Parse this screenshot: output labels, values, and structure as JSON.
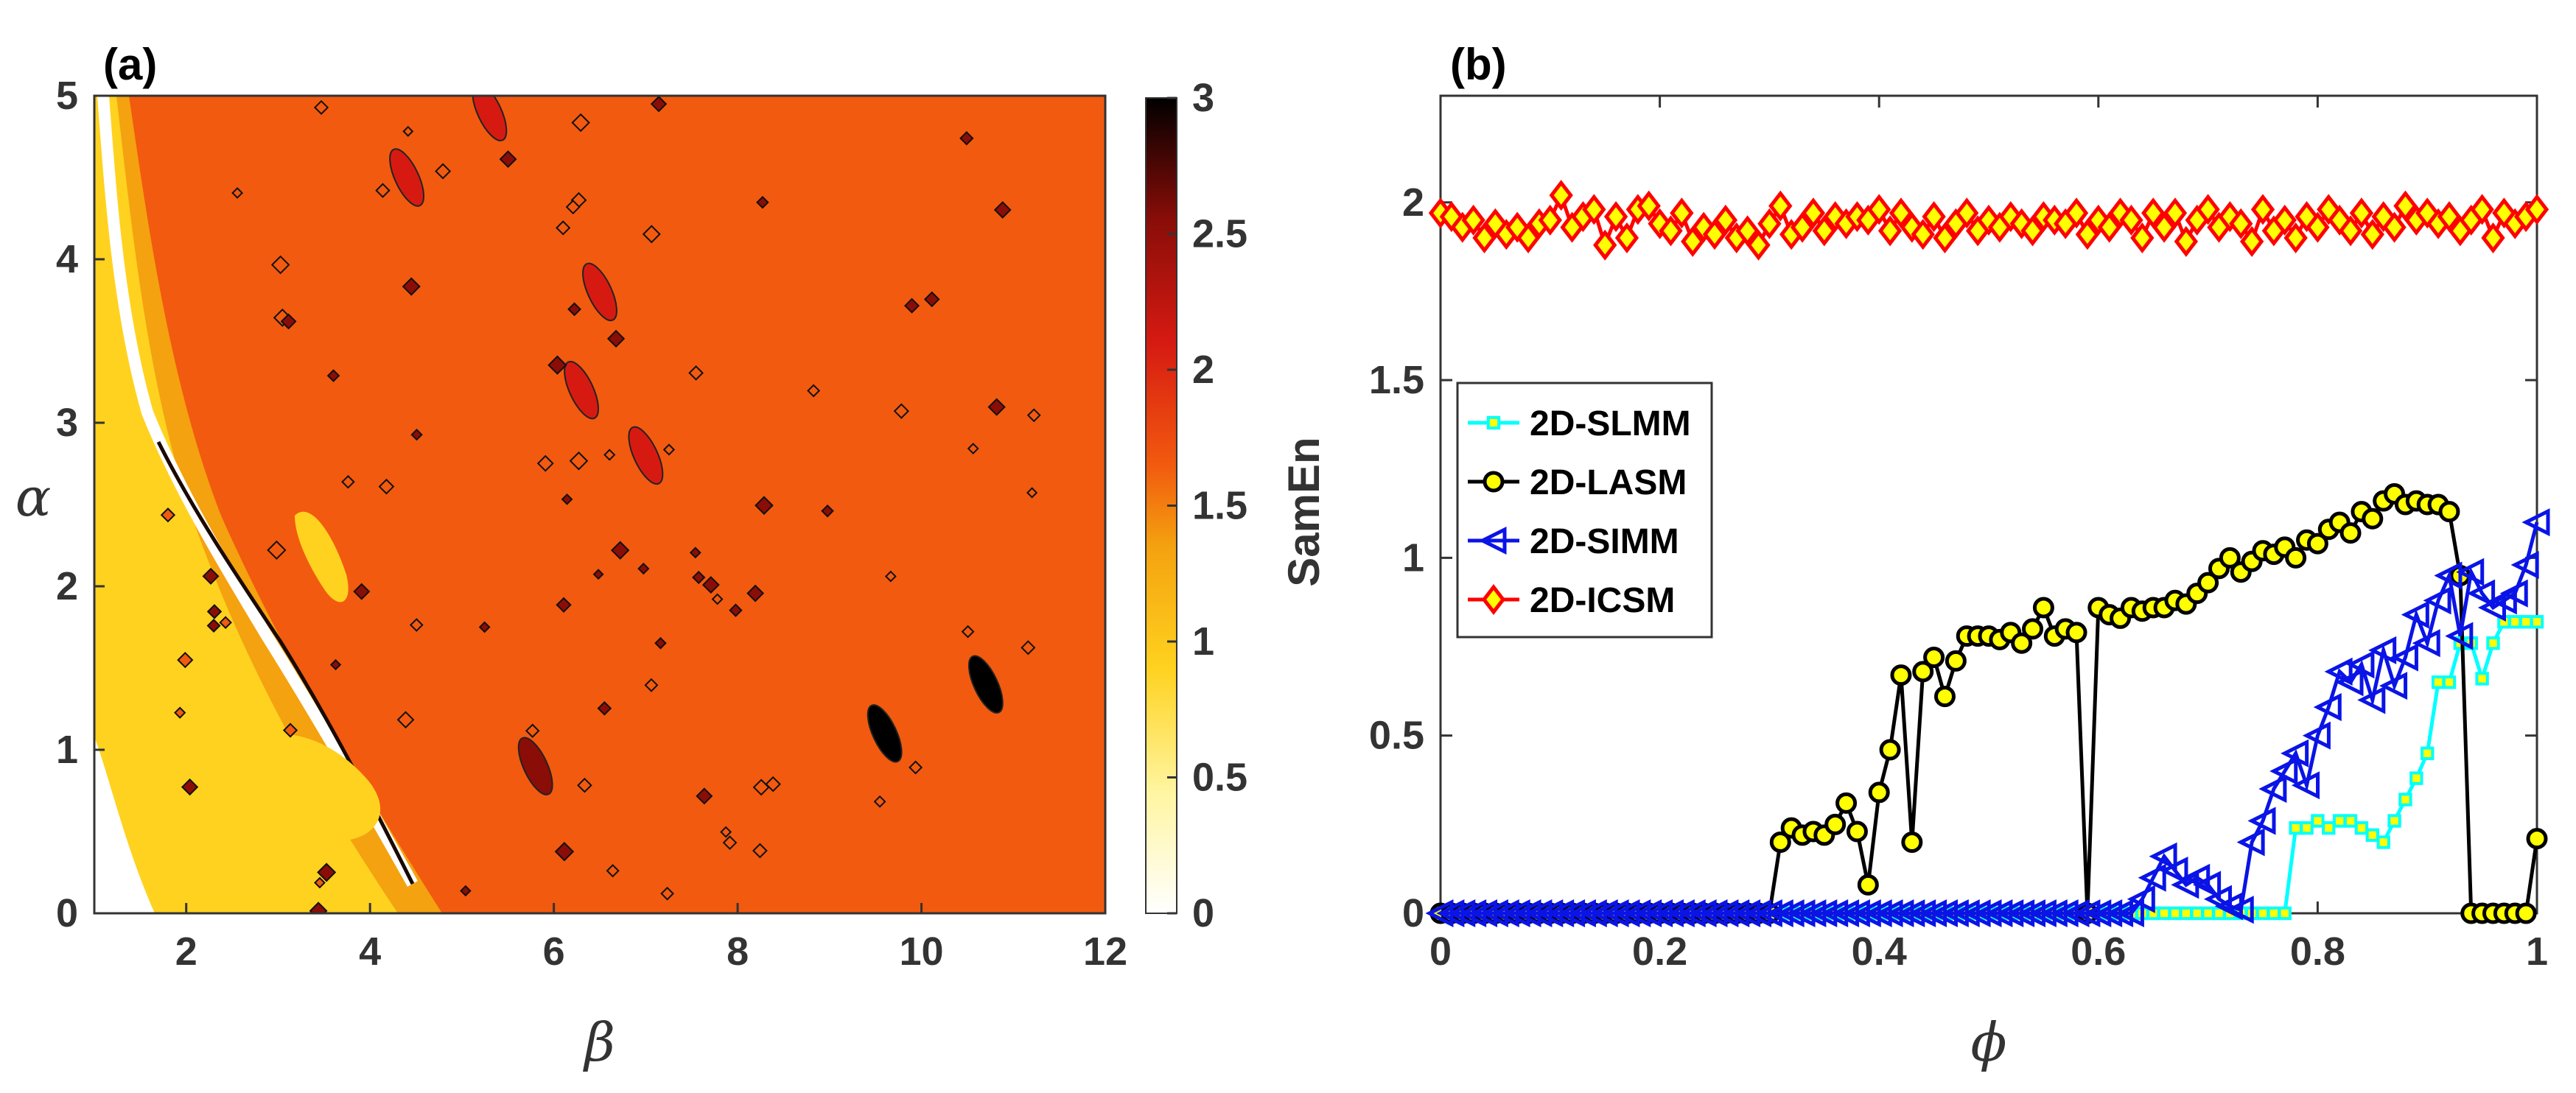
{
  "chart_data": [
    {
      "type": "heatmap",
      "panel_label": "(a)",
      "xlabel": "β",
      "ylabel": "α",
      "xlim": [
        1,
        12
      ],
      "ylim": [
        0,
        5
      ],
      "xticks": [
        "2",
        "4",
        "6",
        "8",
        "10",
        "12"
      ],
      "yticks": [
        "0",
        "1",
        "2",
        "3",
        "4",
        "5"
      ],
      "colorbar": {
        "range": [
          0,
          3
        ],
        "ticks": [
          "0",
          "0.5",
          "1",
          "1.5",
          "2",
          "2.5",
          "3"
        ],
        "colormap": [
          "#ffffff",
          "#fff5a0",
          "#ffd21f",
          "#f4a20f",
          "#f25a0f",
          "#d61a12",
          "#8a0d08",
          "#000000"
        ]
      },
      "background_level": 1.6,
      "low_band_level": 0.7,
      "high_spots": [
        {
          "beta": 4.4,
          "alpha": 4.5,
          "v": 2.1
        },
        {
          "beta": 6.5,
          "alpha": 3.8,
          "v": 2.2
        },
        {
          "beta": 6.3,
          "alpha": 3.2,
          "v": 2.1
        },
        {
          "beta": 5.3,
          "alpha": 4.9,
          "v": 2.0
        },
        {
          "beta": 7.0,
          "alpha": 2.8,
          "v": 2.3
        },
        {
          "beta": 5.8,
          "alpha": 0.9,
          "v": 2.4
        },
        {
          "beta": 10.7,
          "alpha": 1.4,
          "v": 2.8
        },
        {
          "beta": 9.6,
          "alpha": 1.1,
          "v": 2.8
        }
      ]
    },
    {
      "type": "line",
      "panel_label": "(b)",
      "xlabel": "ϕ",
      "ylabel": "SamEn",
      "xlim": [
        0,
        1
      ],
      "ylim": [
        0,
        2.3
      ],
      "xticks": [
        "0",
        "0.2",
        "0.4",
        "0.6",
        "0.8",
        "1"
      ],
      "yticks": [
        "0",
        "0.5",
        "1",
        "1.5",
        "2"
      ],
      "legend_position": "middle-left",
      "x": [
        0.0,
        0.01,
        0.02,
        0.03,
        0.04,
        0.05,
        0.06,
        0.07,
        0.08,
        0.09,
        0.1,
        0.11,
        0.12,
        0.13,
        0.14,
        0.15,
        0.16,
        0.17,
        0.18,
        0.19,
        0.2,
        0.21,
        0.22,
        0.23,
        0.24,
        0.25,
        0.26,
        0.27,
        0.28,
        0.29,
        0.3,
        0.31,
        0.32,
        0.33,
        0.34,
        0.35,
        0.36,
        0.37,
        0.38,
        0.39,
        0.4,
        0.41,
        0.42,
        0.43,
        0.44,
        0.45,
        0.46,
        0.47,
        0.48,
        0.49,
        0.5,
        0.51,
        0.52,
        0.53,
        0.54,
        0.55,
        0.56,
        0.57,
        0.58,
        0.59,
        0.6,
        0.61,
        0.62,
        0.63,
        0.64,
        0.65,
        0.66,
        0.67,
        0.68,
        0.69,
        0.7,
        0.71,
        0.72,
        0.73,
        0.74,
        0.75,
        0.76,
        0.77,
        0.78,
        0.79,
        0.8,
        0.81,
        0.82,
        0.83,
        0.84,
        0.85,
        0.86,
        0.87,
        0.88,
        0.89,
        0.9,
        0.91,
        0.92,
        0.93,
        0.94,
        0.95,
        0.96,
        0.97,
        0.98,
        0.99,
        1.0
      ],
      "series": [
        {
          "name": "2D-SLMM",
          "color": "#00ffff",
          "marker": "square",
          "values": [
            0,
            0,
            0,
            0,
            0,
            0,
            0,
            0,
            0,
            0,
            0,
            0,
            0,
            0,
            0,
            0,
            0,
            0,
            0,
            0,
            0,
            0,
            0,
            0,
            0,
            0,
            0,
            0,
            0,
            0,
            0,
            0,
            0,
            0,
            0,
            0,
            0,
            0,
            0,
            0,
            0,
            0,
            0,
            0,
            0,
            0,
            0,
            0,
            0,
            0,
            0,
            0,
            0,
            0,
            0,
            0,
            0,
            0,
            0,
            0,
            0,
            0,
            0,
            0,
            0,
            0,
            0,
            0,
            0,
            0,
            0,
            0,
            0,
            0,
            0,
            0,
            0,
            0,
            0.24,
            0.24,
            0.26,
            0.24,
            0.26,
            0.26,
            0.24,
            0.22,
            0.2,
            0.26,
            0.32,
            0.38,
            0.45,
            0.65,
            0.65,
            0.76,
            0.76,
            0.66,
            0.76,
            0.82,
            0.82,
            0.82,
            0.82
          ]
        },
        {
          "name": "2D-LASM",
          "color": "#000000",
          "marker": "circle",
          "values": [
            0,
            0,
            0,
            0,
            0,
            0,
            0,
            0,
            0,
            0,
            0,
            0,
            0,
            0,
            0,
            0,
            0,
            0,
            0,
            0,
            0,
            0,
            0,
            0,
            0,
            0,
            0,
            0,
            0,
            0,
            0,
            0.2,
            0.24,
            0.22,
            0.23,
            0.22,
            0.25,
            0.31,
            0.23,
            0.08,
            0.34,
            0.46,
            0.67,
            0.2,
            0.68,
            0.72,
            0.61,
            0.71,
            0.78,
            0.78,
            0.78,
            0.77,
            0.79,
            0.76,
            0.8,
            0.86,
            0.78,
            0.8,
            0.79,
            0.0,
            0.86,
            0.84,
            0.83,
            0.86,
            0.85,
            0.86,
            0.86,
            0.88,
            0.87,
            0.9,
            0.93,
            0.97,
            1.0,
            0.96,
            0.99,
            1.02,
            1.01,
            1.03,
            1.0,
            1.05,
            1.04,
            1.08,
            1.1,
            1.07,
            1.13,
            1.11,
            1.16,
            1.18,
            1.15,
            1.16,
            1.15,
            1.15,
            1.13,
            0.95,
            0.0,
            0.0,
            0.0,
            0.0,
            0.0,
            0.0,
            0.21
          ]
        },
        {
          "name": "2D-SIMM",
          "color": "#0a14e6",
          "marker": "triangle-left",
          "values": [
            0,
            0,
            0,
            0,
            0,
            0,
            0,
            0,
            0,
            0,
            0,
            0,
            0,
            0,
            0,
            0,
            0,
            0,
            0,
            0,
            0,
            0,
            0,
            0,
            0,
            0,
            0,
            0,
            0,
            0,
            0,
            0,
            0,
            0,
            0,
            0,
            0,
            0,
            0,
            0,
            0,
            0,
            0,
            0,
            0,
            0,
            0,
            0,
            0,
            0,
            0,
            0,
            0,
            0,
            0,
            0,
            0,
            0,
            0,
            0,
            0,
            0,
            0,
            0,
            0.04,
            0.1,
            0.16,
            0.12,
            0.08,
            0.1,
            0.08,
            0.04,
            0.02,
            0.01,
            0.2,
            0.26,
            0.35,
            0.4,
            0.45,
            0.36,
            0.5,
            0.58,
            0.68,
            0.65,
            0.7,
            0.6,
            0.74,
            0.64,
            0.72,
            0.84,
            0.76,
            0.88,
            0.95,
            0.78,
            0.96,
            0.9,
            0.86,
            0.88,
            0.9,
            0.98,
            1.1
          ]
        },
        {
          "name": "2D-ICSM",
          "color": "#ff0000",
          "marker": "diamond",
          "values": [
            1.97,
            1.96,
            1.93,
            1.95,
            1.9,
            1.94,
            1.91,
            1.93,
            1.9,
            1.94,
            1.95,
            2.02,
            1.93,
            1.96,
            1.98,
            1.88,
            1.96,
            1.9,
            1.98,
            1.99,
            1.94,
            1.92,
            1.97,
            1.89,
            1.93,
            1.91,
            1.95,
            1.9,
            1.92,
            1.88,
            1.94,
            1.99,
            1.91,
            1.93,
            1.97,
            1.92,
            1.96,
            1.94,
            1.96,
            1.95,
            1.98,
            1.92,
            1.97,
            1.93,
            1.91,
            1.96,
            1.9,
            1.94,
            1.97,
            1.92,
            1.95,
            1.93,
            1.96,
            1.94,
            1.92,
            1.96,
            1.95,
            1.94,
            1.97,
            1.91,
            1.95,
            1.93,
            1.97,
            1.95,
            1.9,
            1.97,
            1.93,
            1.97,
            1.89,
            1.95,
            1.98,
            1.93,
            1.96,
            1.94,
            1.89,
            1.98,
            1.92,
            1.95,
            1.9,
            1.96,
            1.93,
            1.98,
            1.95,
            1.92,
            1.97,
            1.91,
            1.96,
            1.93,
            1.99,
            1.95,
            1.97,
            1.94,
            1.96,
            1.92,
            1.95,
            1.98,
            1.9,
            1.97,
            1.94,
            1.96,
            1.98
          ]
        }
      ]
    }
  ]
}
